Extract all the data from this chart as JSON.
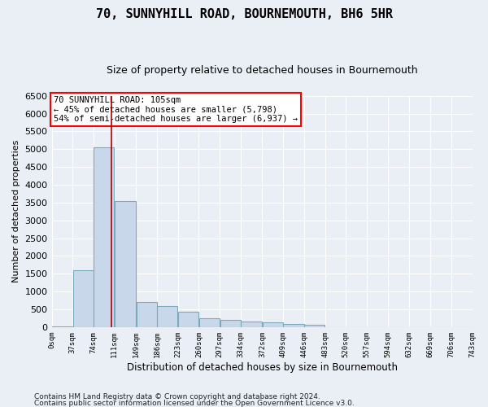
{
  "title": "70, SUNNYHILL ROAD, BOURNEMOUTH, BH6 5HR",
  "subtitle": "Size of property relative to detached houses in Bournemouth",
  "xlabel": "Distribution of detached houses by size in Bournemouth",
  "ylabel": "Number of detached properties",
  "footer1": "Contains HM Land Registry data © Crown copyright and database right 2024.",
  "footer2": "Contains public sector information licensed under the Open Government Licence v3.0.",
  "annotation_line1": "70 SUNNYHILL ROAD: 105sqm",
  "annotation_line2": "← 45% of detached houses are smaller (5,798)",
  "annotation_line3": "54% of semi-detached houses are larger (6,937) →",
  "bar_color": "#c8d8ea",
  "bar_edge_color": "#7aaabb",
  "vline_color": "#aa0000",
  "vline_x": 105,
  "bins": [
    0,
    37,
    74,
    111,
    149,
    186,
    223,
    260,
    297,
    334,
    372,
    409,
    446,
    483,
    520,
    557,
    594,
    632,
    669,
    706,
    743
  ],
  "bin_labels": [
    "0sqm",
    "37sqm",
    "74sqm",
    "111sqm",
    "149sqm",
    "186sqm",
    "223sqm",
    "260sqm",
    "297sqm",
    "334sqm",
    "372sqm",
    "409sqm",
    "446sqm",
    "483sqm",
    "520sqm",
    "557sqm",
    "594sqm",
    "632sqm",
    "669sqm",
    "706sqm",
    "743sqm"
  ],
  "bar_heights": [
    30,
    1600,
    5050,
    3550,
    700,
    580,
    430,
    250,
    200,
    160,
    130,
    90,
    60,
    0,
    0,
    0,
    0,
    0,
    0,
    0
  ],
  "ylim": [
    0,
    6500
  ],
  "yticks": [
    0,
    500,
    1000,
    1500,
    2000,
    2500,
    3000,
    3500,
    4000,
    4500,
    5000,
    5500,
    6000,
    6500
  ],
  "bg_color": "#eaeff5",
  "plot_bg_color": "#eaeff5",
  "grid_color": "#ffffff",
  "title_fontsize": 11,
  "subtitle_fontsize": 9,
  "figsize": [
    6.0,
    5.0
  ],
  "dpi": 100
}
